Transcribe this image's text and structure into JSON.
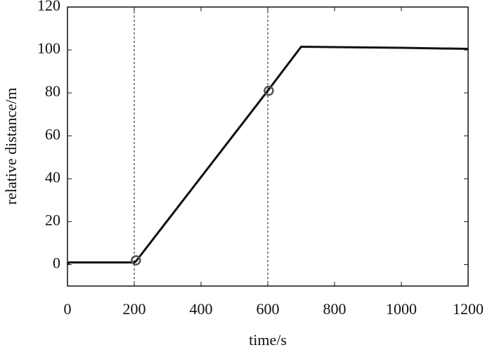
{
  "chart_data": {
    "type": "line",
    "xlabel": "time/s",
    "ylabel": "relative distance/m",
    "x": [
      0,
      5,
      200,
      205,
      600,
      700,
      1000,
      1200
    ],
    "series": [
      {
        "color": "#111111",
        "values": [
          0,
          1,
          1,
          1.5,
          81,
          101.5,
          101,
          100.5
        ]
      }
    ],
    "markers": {
      "x": [
        205,
        603
      ],
      "y": [
        2,
        81
      ],
      "color": "#555555"
    },
    "vlines": [
      200,
      600
    ],
    "xlim": [
      0,
      1200
    ],
    "xticks": [
      0,
      200,
      400,
      600,
      800,
      1000,
      1200
    ],
    "ylim": [
      -10,
      120
    ],
    "yticks": [
      0,
      20,
      40,
      60,
      80,
      100,
      120
    ],
    "grid": false
  }
}
